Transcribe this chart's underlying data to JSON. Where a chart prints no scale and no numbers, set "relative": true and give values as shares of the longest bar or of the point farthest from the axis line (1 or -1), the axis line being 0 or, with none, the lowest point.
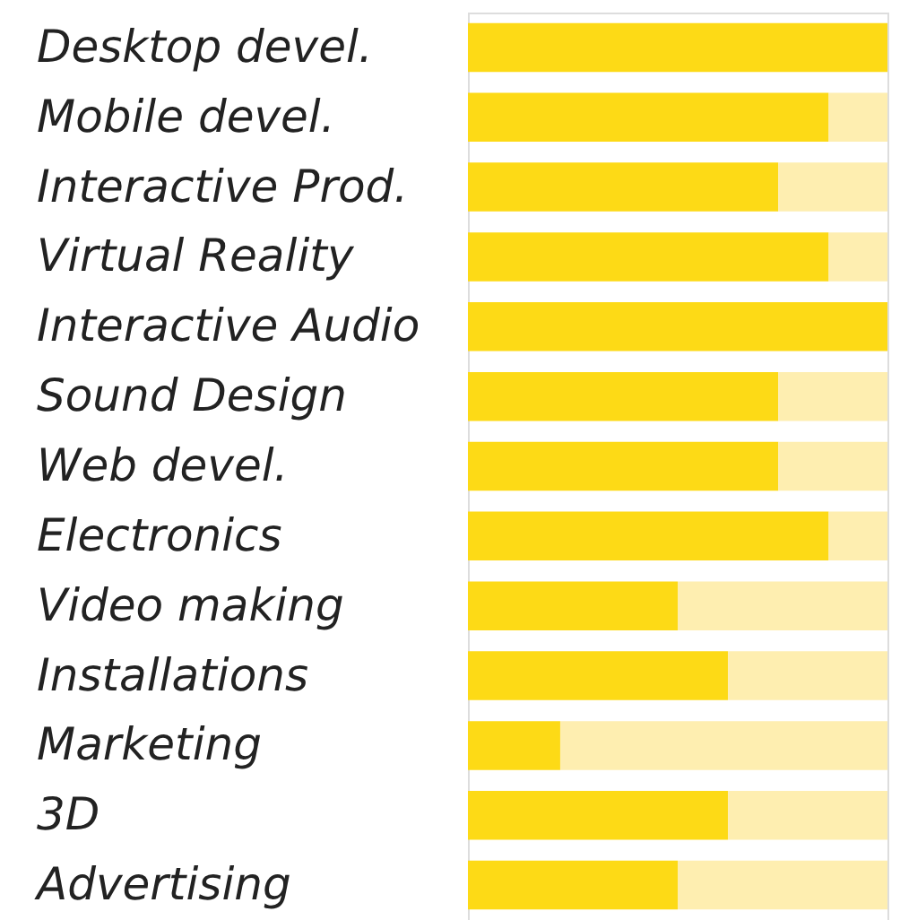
{
  "chart_data": {
    "type": "bar",
    "orientation": "horizontal",
    "stacked": true,
    "relative": true,
    "categories": [
      "Desktop devel.",
      "Mobile devel.",
      "Interactive Prod.",
      "Virtual Reality",
      "Interactive Audio",
      "Sound Design",
      "Web devel.",
      "Electronics",
      "Video making",
      "Installations",
      "Marketing",
      "3D",
      "Advertising"
    ],
    "series": [
      {
        "color": "#fdda16",
        "values": [
          1.0,
          0.86,
          0.74,
          0.86,
          1.0,
          0.74,
          0.74,
          0.86,
          0.5,
          0.62,
          0.22,
          0.62,
          0.5
        ]
      },
      {
        "color": "#feeeb0",
        "values": [
          0.0,
          0.14,
          0.26,
          0.14,
          0.0,
          0.26,
          0.26,
          0.14,
          0.5,
          0.38,
          0.78,
          0.38,
          0.5
        ]
      }
    ]
  }
}
